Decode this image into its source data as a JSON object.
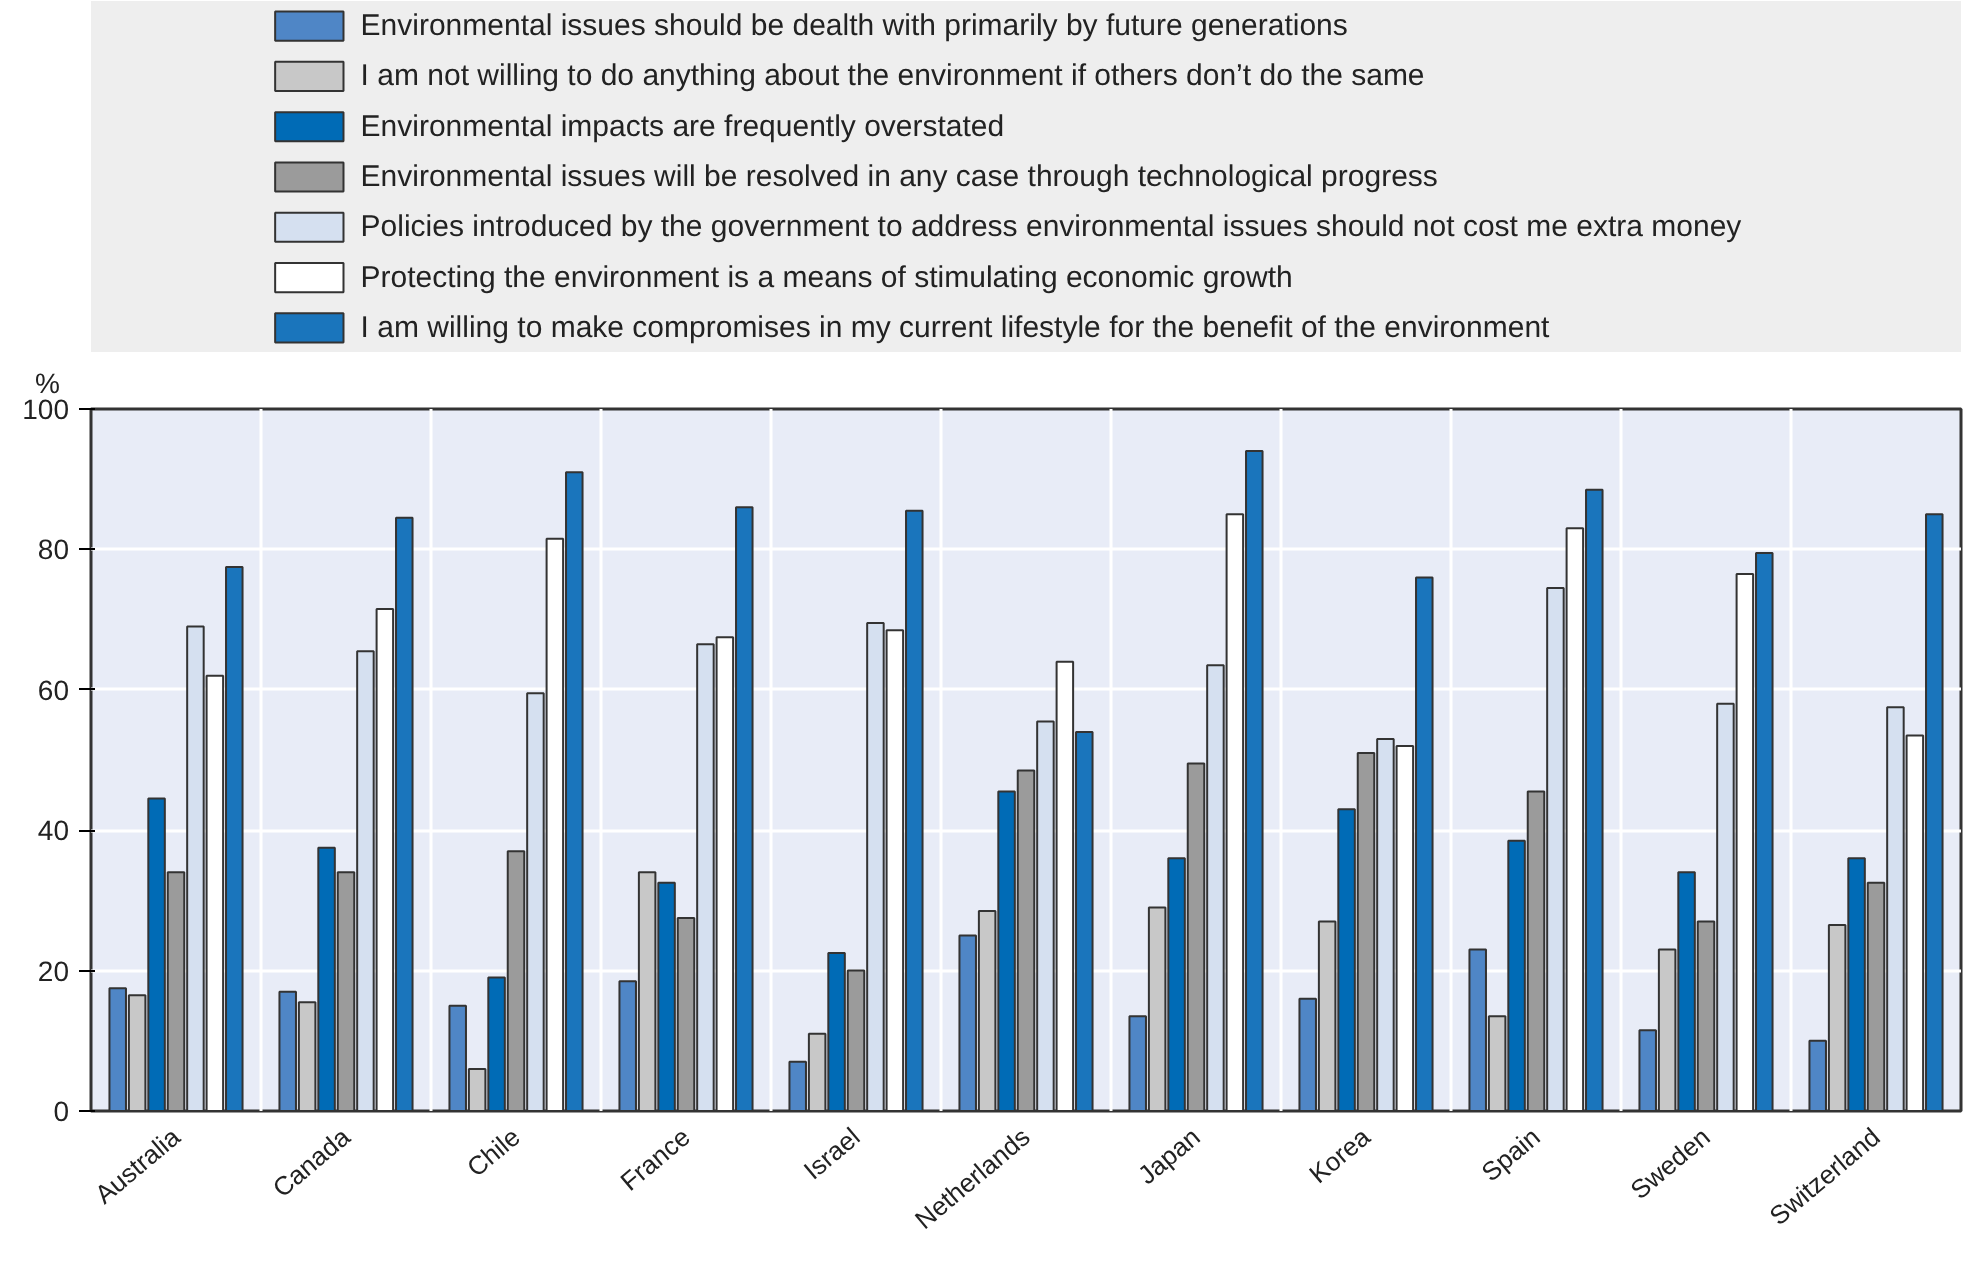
{
  "chart_data": {
    "type": "bar",
    "ylabel": "%",
    "categories": [
      "Australia",
      "Canada",
      "Chile",
      "France",
      "Israel",
      "Netherlands",
      "Japan",
      "Korea",
      "Spain",
      "Sweden",
      "Switzerland"
    ],
    "series": [
      {
        "name": "Environmental issues should be dealth with primarily by future generations",
        "color": "#4f86c6",
        "values": [
          17.5,
          17,
          15,
          18.5,
          7,
          25,
          13.5,
          16,
          23,
          11.5,
          10
        ]
      },
      {
        "name": "I am not willing to do anything about the environment if others don’t do the same",
        "color": "#c8c8c8",
        "values": [
          16.5,
          15.5,
          6,
          34,
          11,
          28.5,
          29,
          27,
          13.5,
          23,
          26.5
        ]
      },
      {
        "name": "Environmental impacts are frequently overstated",
        "color": "#006bb6",
        "values": [
          44.5,
          37.5,
          19,
          32.5,
          22.5,
          45.5,
          36,
          43,
          38.5,
          34,
          36
        ]
      },
      {
        "name": "Environmental issues will be resolved in any case through technological progress",
        "color": "#9b9b9b",
        "values": [
          34,
          34,
          37,
          27.5,
          20,
          48.5,
          49.5,
          51,
          45.5,
          27,
          32.5
        ]
      },
      {
        "name": "Policies introduced by the government to address environmental issues should not cost me extra money",
        "color": "#d5e0f0",
        "values": [
          69,
          65.5,
          59.5,
          66.5,
          69.5,
          55.5,
          63.5,
          53,
          74.5,
          58,
          57.5
        ]
      },
      {
        "name": "Protecting the environment is a means of stimulating economic growth",
        "color": "#ffffff",
        "values": [
          62,
          71.5,
          81.5,
          67.5,
          68.5,
          64,
          85,
          52,
          83,
          76.5,
          53.5
        ]
      },
      {
        "name": "I am willing to make compromises in my current lifestyle for the benefit of the environment",
        "color": "#1a75bc",
        "values": [
          77.5,
          84.5,
          91,
          86,
          85.5,
          54,
          94,
          76,
          88.5,
          79.5,
          85
        ]
      }
    ],
    "ylim": [
      0,
      100
    ],
    "yticks": [
      0,
      20,
      40,
      60,
      80,
      100
    ],
    "grid": true,
    "legend": "top"
  }
}
